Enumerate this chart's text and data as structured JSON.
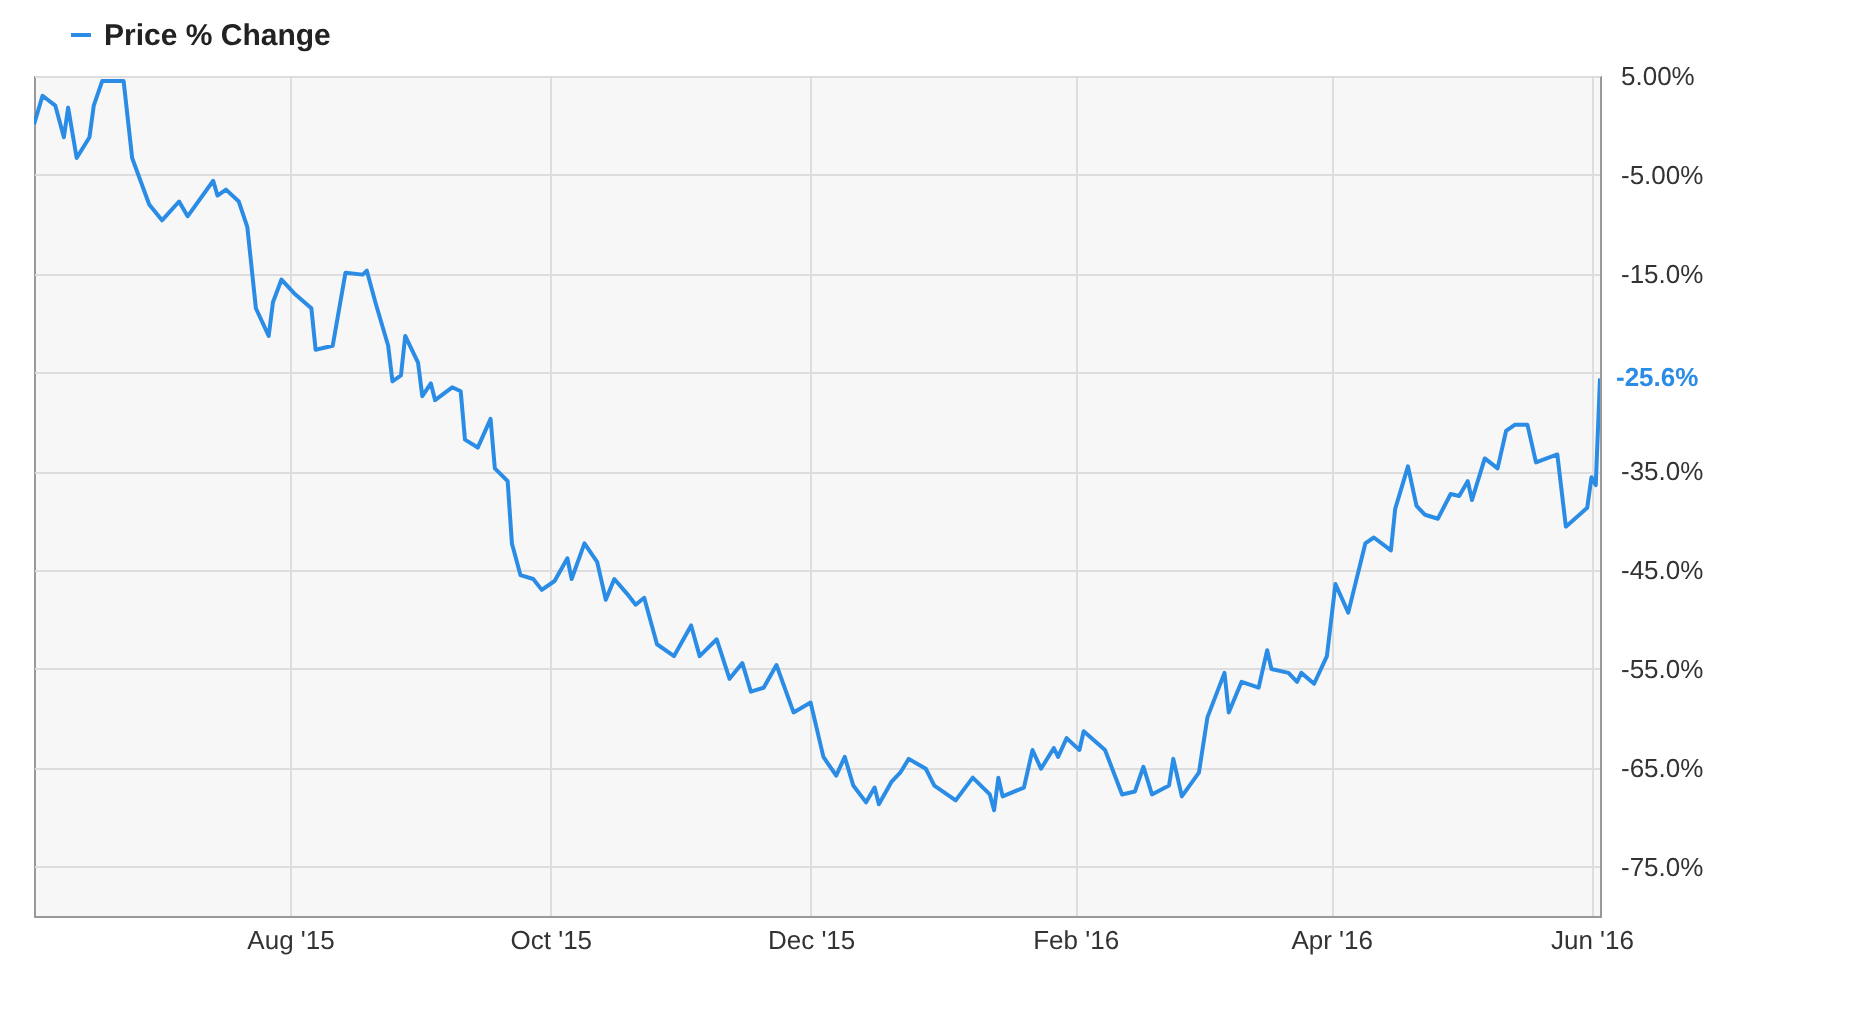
{
  "chart_data": {
    "type": "line",
    "legend": "top left",
    "grid": true,
    "line_style": "solid",
    "marker": "none",
    "xlim": [
      "2015-06-02",
      "2016-06-03"
    ],
    "xticks": [
      {
        "value": "2015-08-01",
        "label": "Aug '15"
      },
      {
        "value": "2015-10-01",
        "label": "Oct '15"
      },
      {
        "value": "2015-12-01",
        "label": "Dec '15"
      },
      {
        "value": "2016-02-01",
        "label": "Feb '16"
      },
      {
        "value": "2016-04-01",
        "label": "Apr '16"
      },
      {
        "value": "2016-06-01",
        "label": "Jun '16"
      }
    ],
    "ylim": [
      -80,
      5
    ],
    "yticks": [
      {
        "value": 5,
        "label": "5.00%"
      },
      {
        "value": -5,
        "label": "-5.00%"
      },
      {
        "value": -15,
        "label": "-15.0%"
      },
      {
        "value": -25,
        "label": null
      },
      {
        "value": -35,
        "label": "-35.0%"
      },
      {
        "value": -45,
        "label": "-45.0%"
      },
      {
        "value": -55,
        "label": "-55.0%"
      },
      {
        "value": -65,
        "label": "-65.0%"
      },
      {
        "value": -75,
        "label": "-75.0%"
      }
    ],
    "series": [
      {
        "name": "Price % Change",
        "color": "#2b8ce6",
        "x": [
          "2015-06-02",
          "2015-06-04",
          "2015-06-07",
          "2015-06-09",
          "2015-06-10",
          "2015-06-12",
          "2015-06-15",
          "2015-06-16",
          "2015-06-18",
          "2015-06-23",
          "2015-06-25",
          "2015-06-29",
          "2015-07-02",
          "2015-07-06",
          "2015-07-08",
          "2015-07-14",
          "2015-07-15",
          "2015-07-17",
          "2015-07-20",
          "2015-07-22",
          "2015-07-24",
          "2015-07-27",
          "2015-07-28",
          "2015-07-30",
          "2015-08-02",
          "2015-08-06",
          "2015-08-07",
          "2015-08-11",
          "2015-08-14",
          "2015-08-18",
          "2015-08-19",
          "2015-08-21",
          "2015-08-24",
          "2015-08-25",
          "2015-08-27",
          "2015-08-28",
          "2015-08-31",
          "2015-09-01",
          "2015-09-03",
          "2015-09-04",
          "2015-09-08",
          "2015-09-10",
          "2015-09-11",
          "2015-09-14",
          "2015-09-17",
          "2015-09-18",
          "2015-09-21",
          "2015-09-22",
          "2015-09-24",
          "2015-09-27",
          "2015-09-29",
          "2015-10-02",
          "2015-10-05",
          "2015-10-06",
          "2015-10-09",
          "2015-10-12",
          "2015-10-14",
          "2015-10-16",
          "2015-10-19",
          "2015-10-21",
          "2015-10-23",
          "2015-10-26",
          "2015-10-30",
          "2015-11-03",
          "2015-11-05",
          "2015-11-09",
          "2015-11-12",
          "2015-11-15",
          "2015-11-17",
          "2015-11-20",
          "2015-11-23",
          "2015-11-27",
          "2015-12-01",
          "2015-12-04",
          "2015-12-07",
          "2015-12-09",
          "2015-12-11",
          "2015-12-14",
          "2015-12-16",
          "2015-12-17",
          "2015-12-20",
          "2015-12-22",
          "2015-12-24",
          "2015-12-28",
          "2015-12-30",
          "2016-01-04",
          "2016-01-08",
          "2016-01-12",
          "2016-01-13",
          "2016-01-14",
          "2016-01-15",
          "2016-01-20",
          "2016-01-22",
          "2016-01-24",
          "2016-01-27",
          "2016-01-28",
          "2016-01-30",
          "2016-02-02",
          "2016-02-03",
          "2016-02-08",
          "2016-02-12",
          "2016-02-15",
          "2016-02-17",
          "2016-02-19",
          "2016-02-23",
          "2016-02-24",
          "2016-02-26",
          "2016-03-01",
          "2016-03-03",
          "2016-03-07",
          "2016-03-08",
          "2016-03-11",
          "2016-03-15",
          "2016-03-17",
          "2016-03-18",
          "2016-03-22",
          "2016-03-24",
          "2016-03-25",
          "2016-03-28",
          "2016-03-31",
          "2016-04-02",
          "2016-04-05",
          "2016-04-09",
          "2016-04-11",
          "2016-04-15",
          "2016-04-16",
          "2016-04-19",
          "2016-04-21",
          "2016-04-23",
          "2016-04-26",
          "2016-04-29",
          "2016-05-01",
          "2016-05-03",
          "2016-05-04",
          "2016-05-07",
          "2016-05-10",
          "2016-05-12",
          "2016-05-14",
          "2016-05-17",
          "2016-05-19",
          "2016-05-24",
          "2016-05-26",
          "2016-05-31",
          "2016-06-01",
          "2016-06-02",
          "2016-06-03"
        ],
        "values": [
          0.1,
          3.0,
          2.0,
          -1.2,
          1.8,
          -3.3,
          -1.2,
          2.0,
          4.5,
          4.5,
          -3.3,
          -8.0,
          -9.6,
          -7.7,
          -9.2,
          -5.6,
          -7.1,
          -6.5,
          -7.7,
          -10.3,
          -18.5,
          -21.3,
          -17.9,
          -15.6,
          -17.0,
          -18.5,
          -22.7,
          -22.3,
          -14.9,
          -15.1,
          -14.7,
          -17.9,
          -22.3,
          -25.9,
          -25.3,
          -21.3,
          -24.0,
          -27.4,
          -26.1,
          -27.8,
          -26.5,
          -26.9,
          -31.8,
          -32.6,
          -29.7,
          -34.7,
          -36.0,
          -42.3,
          -45.5,
          -45.9,
          -47.0,
          -46.1,
          -43.8,
          -45.9,
          -42.3,
          -44.2,
          -48.0,
          -45.9,
          -47.4,
          -48.5,
          -47.8,
          -52.5,
          -53.7,
          -50.6,
          -53.7,
          -52.0,
          -56.0,
          -54.4,
          -57.3,
          -56.9,
          -54.6,
          -59.4,
          -58.4,
          -63.9,
          -65.8,
          -63.9,
          -66.8,
          -68.5,
          -67.0,
          -68.7,
          -66.4,
          -65.5,
          -64.1,
          -65.1,
          -66.8,
          -68.3,
          -66.0,
          -67.7,
          -69.3,
          -66.0,
          -67.9,
          -67.0,
          -63.2,
          -65.1,
          -63.0,
          -63.9,
          -62.0,
          -63.2,
          -61.3,
          -63.2,
          -67.7,
          -67.4,
          -64.9,
          -67.7,
          -66.8,
          -64.1,
          -67.9,
          -65.5,
          -59.9,
          -55.4,
          -59.4,
          -56.3,
          -56.9,
          -53.1,
          -55.0,
          -55.4,
          -56.3,
          -55.4,
          -56.5,
          -53.7,
          -46.4,
          -49.3,
          -42.3,
          -41.7,
          -43.0,
          -38.8,
          -34.5,
          -38.5,
          -39.4,
          -39.8,
          -37.3,
          -37.5,
          -36.0,
          -37.9,
          -33.7,
          -34.7,
          -30.9,
          -30.3,
          -30.3,
          -34.1,
          -33.3,
          -40.6,
          -38.7,
          -35.6,
          -36.4,
          -25.6
        ],
        "value_labels": [
          null,
          null,
          null,
          null,
          null,
          null,
          null,
          null,
          null,
          null,
          null,
          null,
          null,
          null,
          null,
          null,
          null,
          null,
          null,
          null,
          null,
          null,
          null,
          null,
          null,
          null,
          null,
          null,
          null,
          null,
          null,
          null,
          null,
          null,
          null,
          null,
          null,
          null,
          null,
          null,
          null,
          null,
          null,
          null,
          null,
          null,
          null,
          null,
          null,
          null,
          null,
          null,
          null,
          null,
          null,
          null,
          null,
          null,
          null,
          null,
          null,
          null,
          null,
          null,
          null,
          null,
          null,
          null,
          null,
          null,
          null,
          null,
          null,
          null,
          null,
          null,
          null,
          null,
          null,
          null,
          null,
          null,
          null,
          null,
          null,
          null,
          null,
          null,
          null,
          null,
          null,
          null,
          null,
          null,
          null,
          null,
          null,
          null,
          null,
          null,
          null,
          null,
          null,
          null,
          null,
          null,
          null,
          null,
          null,
          null,
          null,
          null,
          null,
          null,
          null,
          null,
          null,
          null,
          null,
          null,
          null,
          null,
          null,
          null,
          null,
          null,
          null,
          null,
          null,
          null,
          null,
          null,
          null,
          null,
          null,
          null,
          null,
          null,
          null,
          null,
          null,
          null,
          null,
          null,
          null,
          "-25.6%"
        ]
      }
    ]
  }
}
